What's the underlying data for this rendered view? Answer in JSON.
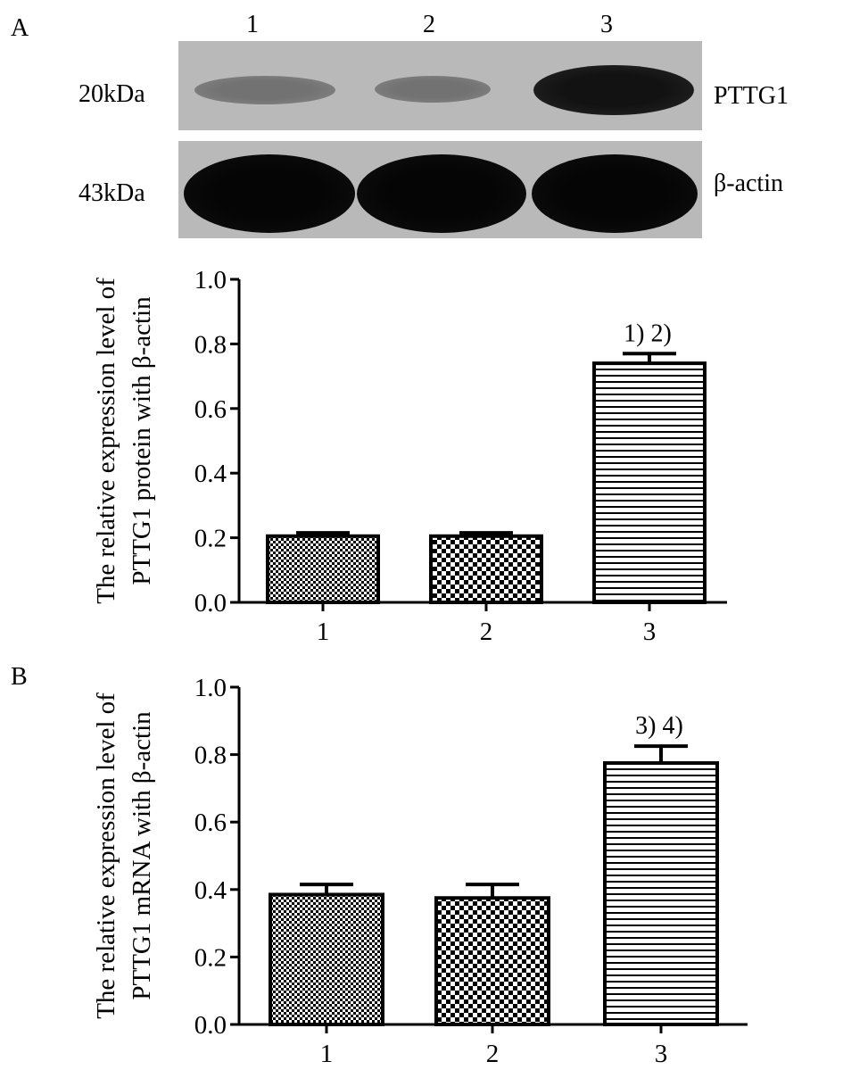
{
  "panel_labels": [
    "A",
    "B"
  ],
  "blot": {
    "lane_labels": [
      "1",
      "2",
      "3"
    ],
    "rows": [
      {
        "mw": "20kDa",
        "protein": "PTTG1",
        "intensity": [
          0.35,
          0.35,
          0.9
        ]
      },
      {
        "mw": "43kDa",
        "protein": "β-actin",
        "intensity": [
          1.0,
          1.0,
          1.0
        ]
      }
    ]
  },
  "chart_data": [
    {
      "type": "bar",
      "panel": "A",
      "categories": [
        "1",
        "2",
        "3"
      ],
      "values": [
        0.205,
        0.205,
        0.74
      ],
      "errors": [
        0.01,
        0.01,
        0.03
      ],
      "annotations": [
        "",
        "",
        "1) 2)"
      ],
      "ylabel_line1": "The relative expression level of",
      "ylabel_line2": "PTTG1 protein with β-actin",
      "ylim": [
        0,
        1.0
      ],
      "yticks": [
        "0.0",
        "0.2",
        "0.4",
        "0.6",
        "0.8",
        "1.0"
      ],
      "patterns": [
        "fine-checker",
        "checker",
        "horizontal-lines"
      ]
    },
    {
      "type": "bar",
      "panel": "B",
      "categories": [
        "1",
        "2",
        "3"
      ],
      "values": [
        0.385,
        0.375,
        0.775
      ],
      "errors": [
        0.03,
        0.04,
        0.05
      ],
      "annotations": [
        "",
        "",
        "3) 4)"
      ],
      "ylabel_line1": "The relative expression level of",
      "ylabel_line2": "PTTG1 mRNA with β-actin",
      "ylim": [
        0,
        1.0
      ],
      "yticks": [
        "0.0",
        "0.2",
        "0.4",
        "0.6",
        "0.8",
        "1.0"
      ],
      "patterns": [
        "fine-checker",
        "checker",
        "horizontal-lines"
      ]
    }
  ]
}
